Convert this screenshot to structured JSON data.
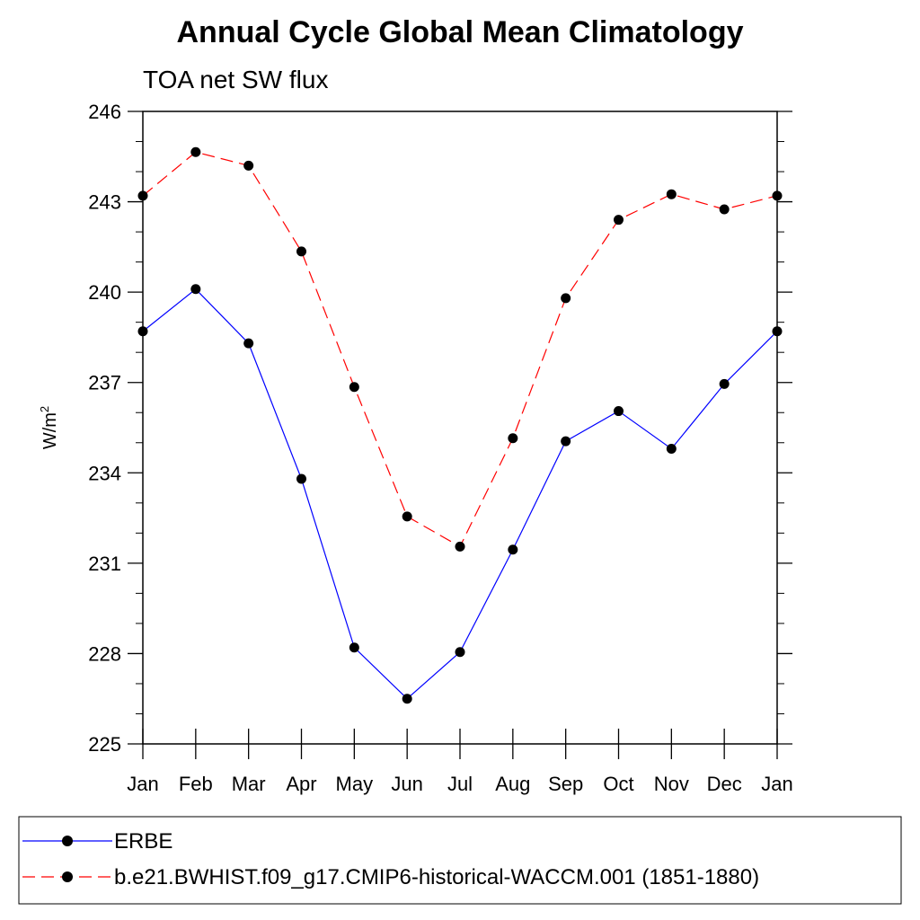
{
  "chart_data": {
    "type": "line",
    "title": "Annual Cycle Global Mean Climatology",
    "subtitle": "TOA net SW flux",
    "ylabel_base": "W/m",
    "ylabel_sup": "2",
    "xlabel": "",
    "categories": [
      "Jan",
      "Feb",
      "Mar",
      "Apr",
      "May",
      "Jun",
      "Jul",
      "Aug",
      "Sep",
      "Oct",
      "Nov",
      "Dec",
      "Jan"
    ],
    "ylim": [
      225,
      246
    ],
    "yticks": [
      225,
      228,
      231,
      234,
      237,
      240,
      243,
      246
    ],
    "series": [
      {
        "name": "ERBE",
        "color": "#0000ff",
        "dash": "solid",
        "values": [
          238.7,
          240.1,
          238.3,
          233.8,
          228.2,
          226.5,
          228.05,
          231.45,
          235.05,
          236.05,
          234.8,
          236.95,
          238.7
        ]
      },
      {
        "name": "b.e21.BWHIST.f09_g17.CMIP6-historical-WACCM.001 (1851-1880)",
        "color": "#ff0000",
        "dash": "dashed",
        "values": [
          243.2,
          244.65,
          244.2,
          241.35,
          236.85,
          232.55,
          231.55,
          235.15,
          239.8,
          242.4,
          243.25,
          242.75,
          243.2
        ]
      }
    ],
    "legend_position": "bottom"
  }
}
